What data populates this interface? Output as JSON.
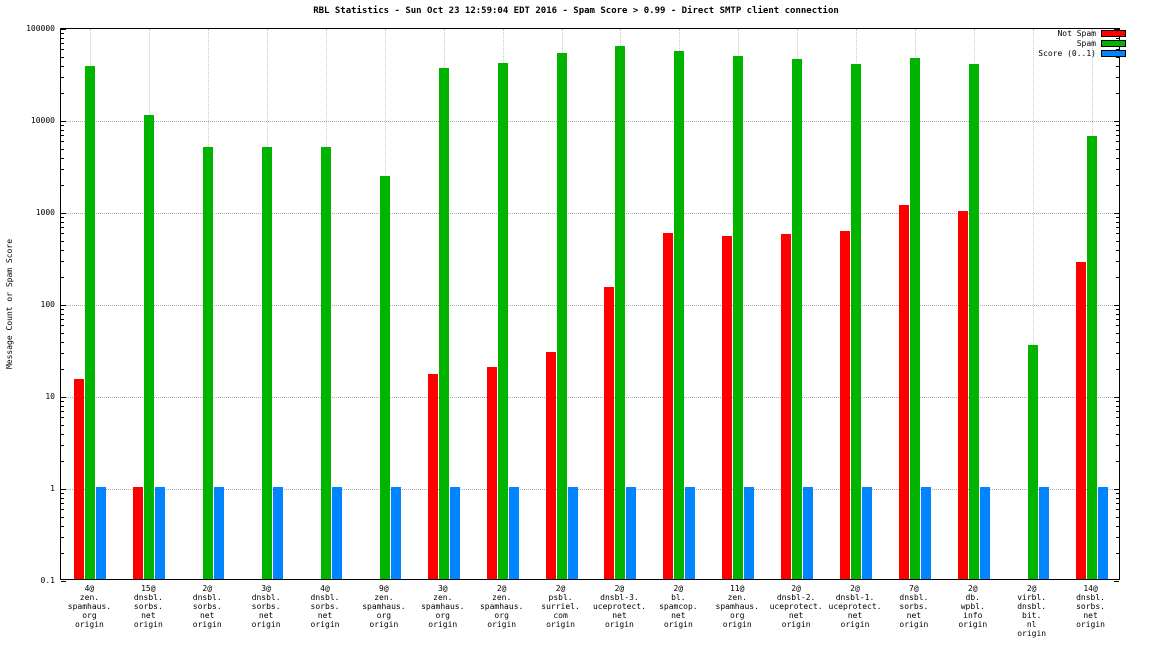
{
  "title": "RBL Statistics - Sun Oct 23 12:59:04 EDT 2016 - Spam Score > 0.99 - Direct SMTP client connection",
  "chart_data": {
    "type": "bar",
    "yscale": "log",
    "title": "RBL Statistics - Sun Oct 23 12:59:04 EDT 2016 - Spam Score > 0.99 - Direct SMTP client connection",
    "xlabel": "",
    "ylabel": "Message Count or Spam Score",
    "ylim": [
      0.1,
      100000
    ],
    "ytick_labels": [
      "0.1",
      "1",
      "10",
      "100",
      "1000",
      "10000",
      "100000"
    ],
    "grid": true,
    "legend_position": "top-right",
    "categories": [
      [
        "4@",
        "zen.",
        "spamhaus.",
        "org",
        "origin"
      ],
      [
        "15@",
        "dnsbl.",
        "sorbs.",
        "net",
        "origin"
      ],
      [
        "2@",
        "dnsbl.",
        "sorbs.",
        "net",
        "origin"
      ],
      [
        "3@",
        "dnsbl.",
        "sorbs.",
        "net",
        "origin"
      ],
      [
        "4@",
        "dnsbl.",
        "sorbs.",
        "net",
        "origin"
      ],
      [
        "9@",
        "zen.",
        "spamhaus.",
        "org",
        "origin"
      ],
      [
        "3@",
        "zen.",
        "spamhaus.",
        "org",
        "origin"
      ],
      [
        "2@",
        "zen.",
        "spamhaus.",
        "org",
        "origin"
      ],
      [
        "2@",
        "psbl.",
        "surriel.",
        "com",
        "origin"
      ],
      [
        "2@",
        "dnsbl-3.",
        "uceprotect.",
        "net",
        "origin"
      ],
      [
        "2@",
        "bl.",
        "spamcop.",
        "net",
        "origin"
      ],
      [
        "11@",
        "zen.",
        "spamhaus.",
        "org",
        "origin"
      ],
      [
        "2@",
        "dnsbl-2.",
        "uceprotect.",
        "net",
        "origin"
      ],
      [
        "2@",
        "dnsbl-1.",
        "uceprotect.",
        "net",
        "origin"
      ],
      [
        "7@",
        "dnsbl.",
        "sorbs.",
        "net",
        "origin"
      ],
      [
        "2@",
        "db.",
        "wpbl.",
        "info",
        "origin"
      ],
      [
        "2@",
        "virbl.",
        "dnsbl.",
        "bit.",
        "nl",
        "origin"
      ],
      [
        "14@",
        "dnsbl.",
        "sorbs.",
        "net",
        "origin"
      ]
    ],
    "series": [
      {
        "name": "Not Spam",
        "color": "#ff0000",
        "values": [
          15,
          1,
          null,
          null,
          null,
          null,
          17,
          20,
          29,
          150,
          580,
          540,
          560,
          600,
          1150,
          1000,
          null,
          280
        ]
      },
      {
        "name": "Spam",
        "color": "#00b400",
        "values": [
          38000,
          11000,
          5000,
          5000,
          5000,
          2400,
          36000,
          41000,
          52000,
          62000,
          55000,
          48000,
          45000,
          40000,
          46000,
          40000,
          35,
          6500
        ]
      },
      {
        "name": "Score (0..1)",
        "color": "#0084ff",
        "values": [
          1,
          1,
          1,
          1,
          1,
          1,
          1,
          1,
          1,
          1,
          1,
          1,
          1,
          1,
          1,
          1,
          1,
          1
        ]
      }
    ]
  }
}
